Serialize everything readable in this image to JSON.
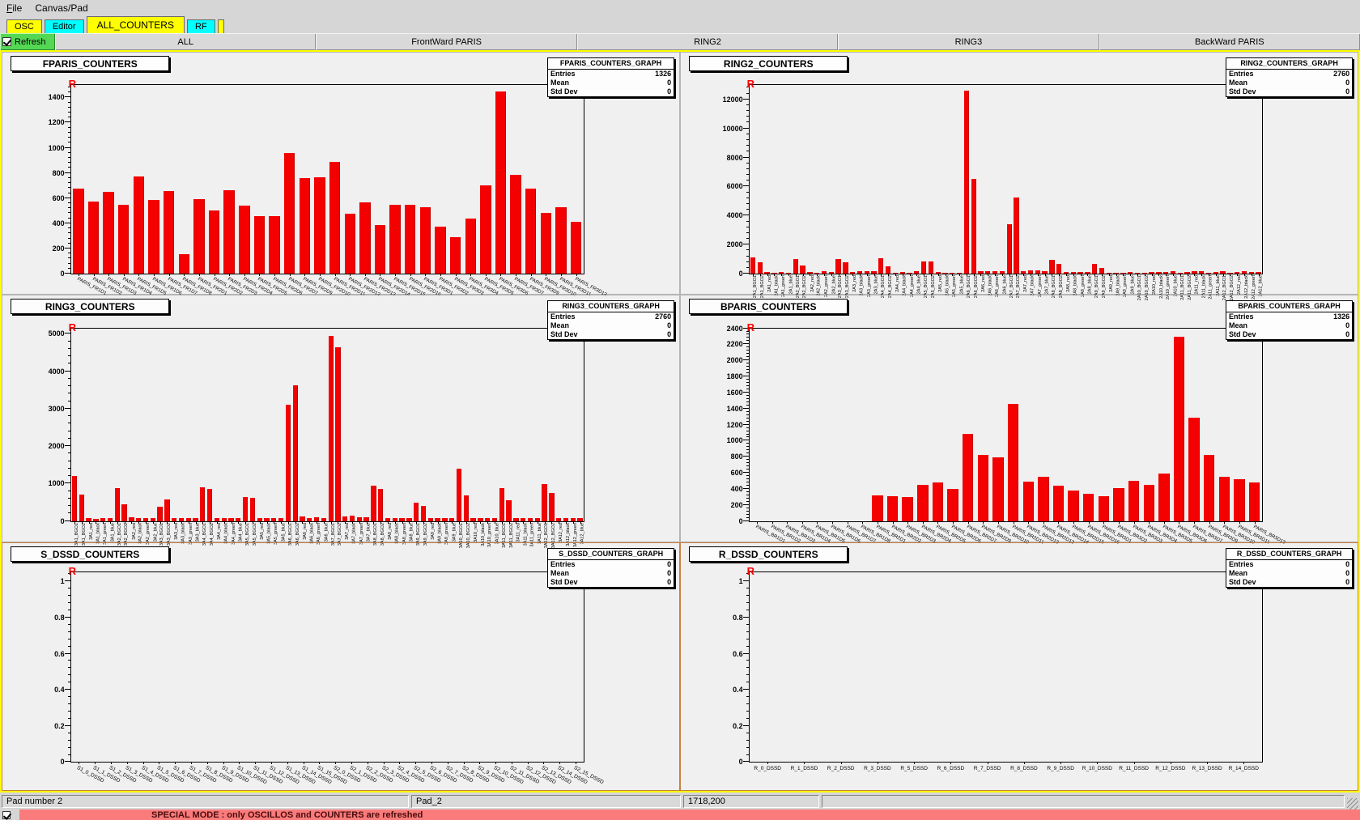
{
  "menu": {
    "items": [
      "File",
      "Canvas/Pad"
    ]
  },
  "tabs": [
    {
      "label": "OSC",
      "color": "#ffff00",
      "active": false
    },
    {
      "label": "Editor",
      "color": "#00ffff",
      "active": false
    },
    {
      "label": "ALL_COUNTERS",
      "color": "#ffff00",
      "active": true
    },
    {
      "label": "RF",
      "color": "#00ffff",
      "active": false
    }
  ],
  "toolbar": {
    "refresh_label": "Refresh",
    "refresh_checked": true,
    "buttons": [
      "ALL",
      "FrontWard PARIS",
      "RING2",
      "RING3",
      "BackWard PARIS"
    ]
  },
  "colors": {
    "bar_red": "#f40000",
    "canvas_highlight": "#ffff00",
    "tab_yellow": "#ffff00",
    "tab_cyan": "#00ffff",
    "refresh_green": "#54d854",
    "banner_red": "#f97b7b",
    "pad_border_selected": "#c9803f"
  },
  "status_bar": {
    "fields": [
      "Pad number 2",
      "Pad_2",
      "1718,200",
      ""
    ]
  },
  "special_mode": {
    "checked": true,
    "text": "SPECIAL MODE : only OSCILLOS and COUNTERS are refreshed"
  },
  "chart_data": [
    {
      "type": "bar",
      "title": "FPARIS_COUNTERS",
      "marker": "R",
      "stats": {
        "name": "FPARIS_COUNTERS_GRAPH",
        "rows": [
          {
            "label": "Entries",
            "value": "1326"
          },
          {
            "label": "Mean",
            "value": "0"
          },
          {
            "label": "Std Dev",
            "value": "0"
          }
        ]
      },
      "ylim": [
        0,
        1500
      ],
      "yticks": [
        0,
        200,
        400,
        600,
        800,
        1000,
        1200,
        1400
      ],
      "label_style": "slant",
      "label_font": 6,
      "categories": [
        "PARIS_FR1D1",
        "PARIS_FR1D2",
        "PARIS_FR1D3",
        "PARIS_FR1D4",
        "PARIS_FR1D5",
        "PARIS_FR1D6",
        "PARIS_FR1D7",
        "PARIS_FR1D8",
        "PARIS_FR2D1",
        "PARIS_FR2D2",
        "PARIS_FR2D3",
        "PARIS_FR2D4",
        "PARIS_FR2D5",
        "PARIS_FR2D6",
        "PARIS_FR2D7",
        "PARIS_FR2D9",
        "PARIS_FR2D10",
        "PARIS_FR2D11",
        "PARIS_FR2D12",
        "PARIS_FR2D13",
        "PARIS_FR2D14",
        "PARIS_FR2D15",
        "PARIS_FR2D16",
        "PARIS_FR3D1",
        "PARIS_FR3D2",
        "PARIS_FR3D3",
        "PARIS_FR3D4",
        "PARIS_FR3D5",
        "PARIS_FR3D6",
        "PARIS_FR3D7",
        "PARIS_FR3D9",
        "PARIS_FR3D10",
        "PARIS_FR3D11",
        "PARIS_FR3D12"
      ],
      "values": [
        675,
        575,
        650,
        545,
        770,
        585,
        655,
        155,
        595,
        505,
        660,
        540,
        455,
        460,
        960,
        760,
        765,
        885,
        475,
        565,
        385,
        550,
        545,
        530,
        375,
        290,
        440,
        700,
        1450,
        785,
        675,
        485,
        525,
        415
      ]
    },
    {
      "type": "bar",
      "title": "RING2_COUNTERS",
      "marker": "R",
      "stats": {
        "name": "RING2_COUNTERS_GRAPH",
        "rows": [
          {
            "label": "Entries",
            "value": "2760"
          },
          {
            "label": "Mean",
            "value": "0"
          },
          {
            "label": "Std Dev",
            "value": "0"
          }
        ]
      },
      "ylim": [
        0,
        13000
      ],
      "yticks": [
        0,
        2000,
        4000,
        6000,
        8000,
        10000,
        12000
      ],
      "label_style": "vertical",
      "label_font": 5.5,
      "categories": [
        "2A1_BGO1",
        "2A1_BGO2",
        "2A1_red",
        "2A1_black",
        "2A1_green",
        "2A1_blue",
        "2A2_BGO1",
        "2A2_BGO2",
        "2A2_red",
        "2A2_black",
        "2A2_green",
        "2A2_blue",
        "2A3_BGO1",
        "2A3_BGO2",
        "2A3_red",
        "2A3_black",
        "2A3_green",
        "2A3_blue",
        "2A4_BGO1",
        "2A4_BGO2",
        "2A4_red",
        "2A4_black",
        "2A4_green",
        "2A4_blue",
        "2A5_BGO1",
        "2A5_BGO2",
        "2A5_red",
        "2A5_black",
        "2A5_green",
        "2A5_blue",
        "2A6_BGO1",
        "2A6_BGO2",
        "2A6_red",
        "2A6_black",
        "2A6_green",
        "2A6_blue",
        "2A7_BGO1",
        "2A7_BGO2",
        "2A7_red",
        "2A7_black",
        "2A7_green",
        "2A7_blue",
        "2A8_BGO1",
        "2A8_BGO2",
        "2A8_red",
        "2A8_black",
        "2A8_green",
        "2A8_blue",
        "2A9_BGO1",
        "2A9_BGO2",
        "2A9_red",
        "2A9_black",
        "2A9_green",
        "2A9_blue",
        "2A10_BGO1",
        "2A10_BGO2",
        "2A10_red",
        "2A10_black",
        "2A10_green",
        "2A10_blue",
        "2A11_BGO1",
        "2A11_BGO2",
        "2A11_red",
        "2A11_black",
        "2A11_green",
        "2A11_blue",
        "2A12_BGO1",
        "2A12_BGO2",
        "2A12_red",
        "2A12_black",
        "2A12_green",
        "2A12_blue"
      ],
      "values": [
        1150,
        800,
        100,
        60,
        110,
        90,
        1000,
        550,
        140,
        90,
        150,
        140,
        1010,
        790,
        110,
        190,
        150,
        200,
        1060,
        500,
        60,
        100,
        60,
        150,
        860,
        850,
        100,
        60,
        50,
        40,
        12600,
        6550,
        150,
        200,
        200,
        160,
        3400,
        5250,
        160,
        250,
        250,
        200,
        950,
        660,
        110,
        100,
        110,
        100,
        660,
        410,
        60,
        60,
        60,
        100,
        60,
        40,
        110,
        100,
        110,
        150,
        60,
        110,
        150,
        160,
        60,
        110,
        160,
        40,
        110,
        150,
        110,
        100
      ]
    },
    {
      "type": "bar",
      "title": "RING3_COUNTERS",
      "marker": "R",
      "stats": {
        "name": "RING3_COUNTERS_GRAPH",
        "rows": [
          {
            "label": "Entries",
            "value": "2760"
          },
          {
            "label": "Mean",
            "value": "0"
          },
          {
            "label": "Std Dev",
            "value": "0"
          }
        ]
      },
      "ylim": [
        0,
        5150
      ],
      "yticks": [
        0,
        1000,
        2000,
        3000,
        4000,
        5000
      ],
      "label_style": "vertical",
      "label_font": 5.5,
      "categories": [
        "3A1_BGO1",
        "3A1_BGO2",
        "3A1_red",
        "3A1_black",
        "3A1_green",
        "3A1_blue",
        "3A2_BGO1",
        "3A2_BGO2",
        "3A2_red",
        "3A2_black",
        "3A2_green",
        "3A2_blue",
        "3A3_BGO1",
        "3A3_BGO2",
        "3A3_red",
        "3A3_black",
        "3A3_green",
        "3A3_blue",
        "3A4_BGO1",
        "3A4_BGO2",
        "3A4_red",
        "3A4_black",
        "3A4_green",
        "3A4_blue",
        "3A5_BGO1",
        "3A5_BGO2",
        "3A5_red",
        "3A5_black",
        "3A5_green",
        "3A5_blue",
        "3A6_BGO1",
        "3A6_BGO2",
        "3A6_red",
        "3A6_black",
        "3A6_green",
        "3A6_blue",
        "3A7_BGO1",
        "3A7_BGO2",
        "3A7_red",
        "3A7_black",
        "3A7_green",
        "3A7_blue",
        "3A8_BGO1",
        "3A8_BGO2",
        "3A8_red",
        "3A8_black",
        "3A8_green",
        "3A8_blue",
        "3A9_BGO1",
        "3A9_BGO2",
        "3A9_red",
        "3A9_black",
        "3A9_green",
        "3A9_blue",
        "3A10_BGO1",
        "3A10_BGO2",
        "3A10_red",
        "3A10_black",
        "3A10_green",
        "3A10_blue",
        "3A11_BGO1",
        "3A11_BGO2",
        "3A11_red",
        "3A11_black",
        "3A11_green",
        "3A11_blue",
        "3A12_BGO1",
        "3A12_BGO2",
        "3A12_red",
        "3A12_black",
        "3A12_green",
        "3A12_blue"
      ],
      "values": [
        1200,
        700,
        90,
        60,
        90,
        70,
        880,
        450,
        100,
        70,
        90,
        80,
        380,
        580,
        90,
        80,
        90,
        90,
        900,
        850,
        70,
        90,
        80,
        90,
        650,
        630,
        80,
        70,
        80,
        70,
        3100,
        3630,
        120,
        90,
        100,
        90,
        4950,
        4650,
        120,
        150,
        100,
        110,
        950,
        860,
        90,
        90,
        90,
        90,
        500,
        400,
        80,
        70,
        80,
        70,
        1400,
        680,
        90,
        80,
        90,
        80,
        880,
        560,
        90,
        80,
        90,
        80,
        980,
        740,
        90,
        70,
        90,
        70
      ]
    },
    {
      "type": "bar",
      "title": "BPARIS_COUNTERS",
      "marker": "R",
      "stats": {
        "name": "BPARIS_COUNTERS_GRAPH",
        "rows": [
          {
            "label": "Entries",
            "value": "1326"
          },
          {
            "label": "Mean",
            "value": "0"
          },
          {
            "label": "Std Dev",
            "value": "0"
          }
        ]
      },
      "ylim": [
        0,
        2400
      ],
      "yticks": [
        0,
        200,
        400,
        600,
        800,
        1000,
        1200,
        1400,
        1600,
        1800,
        2000,
        2200,
        2400
      ],
      "label_style": "slant",
      "label_font": 6,
      "categories": [
        "PARIS_BR1D1",
        "PARIS_BR1D2",
        "PARIS_BR1D3",
        "PARIS_BR1D4",
        "PARIS_BR1D5",
        "PARIS_BR1D6",
        "PARIS_BR1D7",
        "PARIS_BR1D8",
        "PARIS_BR2D1",
        "PARIS_BR2D2",
        "PARIS_BR2D3",
        "PARIS_BR2D4",
        "PARIS_BR2D5",
        "PARIS_BR2D6",
        "PARIS_BR2D7",
        "PARIS_BR2D9",
        "PARIS_BR2D10",
        "PARIS_BR2D11",
        "PARIS_BR2D12",
        "PARIS_BR2D13",
        "PARIS_BR2D14",
        "PARIS_BR2D15",
        "PARIS_BR2D16",
        "PARIS_BR3D1",
        "PARIS_BR3D2",
        "PARIS_BR3D3",
        "PARIS_BR3D4",
        "PARIS_BR3D5",
        "PARIS_BR3D6",
        "PARIS_BR3D7",
        "PARIS_BR3D9",
        "PARIS_BR3D10",
        "PARIS_BR3D11",
        "PARIS_BR3D12"
      ],
      "values": [
        0,
        0,
        0,
        0,
        0,
        0,
        0,
        0,
        320,
        310,
        300,
        450,
        480,
        400,
        1090,
        825,
        790,
        1460,
        490,
        550,
        440,
        380,
        340,
        310,
        410,
        500,
        450,
        590,
        2290,
        1290,
        825,
        550,
        520,
        480
      ]
    },
    {
      "type": "bar",
      "title": "S_DSSD_COUNTERS",
      "marker": "R",
      "stats": {
        "name": "S_DSSD_COUNTERS_GRAPH",
        "rows": [
          {
            "label": "Entries",
            "value": "0"
          },
          {
            "label": "Mean",
            "value": "0"
          },
          {
            "label": "Std Dev",
            "value": "0"
          }
        ]
      },
      "ylim": [
        0,
        1.05
      ],
      "yticks": [
        0,
        0.2,
        0.4,
        0.6,
        0.8,
        1
      ],
      "label_style": "slant",
      "label_font": 6.5,
      "categories": [
        "S1_0_DSSD",
        "S1_1_DSSD",
        "S1_2_DSSD",
        "S1_3_DSSD",
        "S1_4_DSSD",
        "S1_5_DSSD",
        "S1_6_DSSD",
        "S1_7_DSSD",
        "S1_8_DSSD",
        "S1_9_DSSD",
        "S1_10_DSSD",
        "S1_11_DSSD",
        "S1_12_DSSD",
        "S1_13_DSSD",
        "S1_14_DSSD",
        "S1_15_DSSD",
        "S2_0_DSSD",
        "S2_1_DSSD",
        "S2_2_DSSD",
        "S2_3_DSSD",
        "S2_4_DSSD",
        "S2_5_DSSD",
        "S2_6_DSSD",
        "S2_7_DSSD",
        "S2_8_DSSD",
        "S2_9_DSSD",
        "S2_10_DSSD",
        "S2_11_DSSD",
        "S2_12_DSSD",
        "S2_13_DSSD",
        "S2_14_DSSD",
        "S2_15_DSSD"
      ],
      "values": [
        0,
        0,
        0,
        0,
        0,
        0,
        0,
        0,
        0,
        0,
        0,
        0,
        0,
        0,
        0,
        0,
        0,
        0,
        0,
        0,
        0,
        0,
        0,
        0,
        0,
        0,
        0,
        0,
        0,
        0,
        0,
        0
      ]
    },
    {
      "type": "bar",
      "title": "R_DSSD_COUNTERS",
      "marker": "R",
      "stats": {
        "name": "R_DSSD_COUNTERS_GRAPH",
        "rows": [
          {
            "label": "Entries",
            "value": "0"
          },
          {
            "label": "Mean",
            "value": "0"
          },
          {
            "label": "Std Dev",
            "value": "0"
          }
        ]
      },
      "ylim": [
        0,
        1.05
      ],
      "yticks": [
        0,
        0.2,
        0.4,
        0.6,
        0.8,
        1
      ],
      "label_style": "horizontal",
      "label_font": 6.5,
      "categories": [
        "R_0_DSSD",
        "R_1_DSSD",
        "R_2_DSSD",
        "R_3_DSSD",
        "R_5_DSSD",
        "R_6_DSSD",
        "R_7_DSSD",
        "R_8_DSSD",
        "R_9_DSSD",
        "R_10_DSSD",
        "R_11_DSSD",
        "R_12_DSSD",
        "R_13_DSSD",
        "R_14_DSSD"
      ],
      "values": [
        0,
        0,
        0,
        0,
        0,
        0,
        0,
        0,
        0,
        0,
        0,
        0,
        0,
        0
      ]
    }
  ]
}
